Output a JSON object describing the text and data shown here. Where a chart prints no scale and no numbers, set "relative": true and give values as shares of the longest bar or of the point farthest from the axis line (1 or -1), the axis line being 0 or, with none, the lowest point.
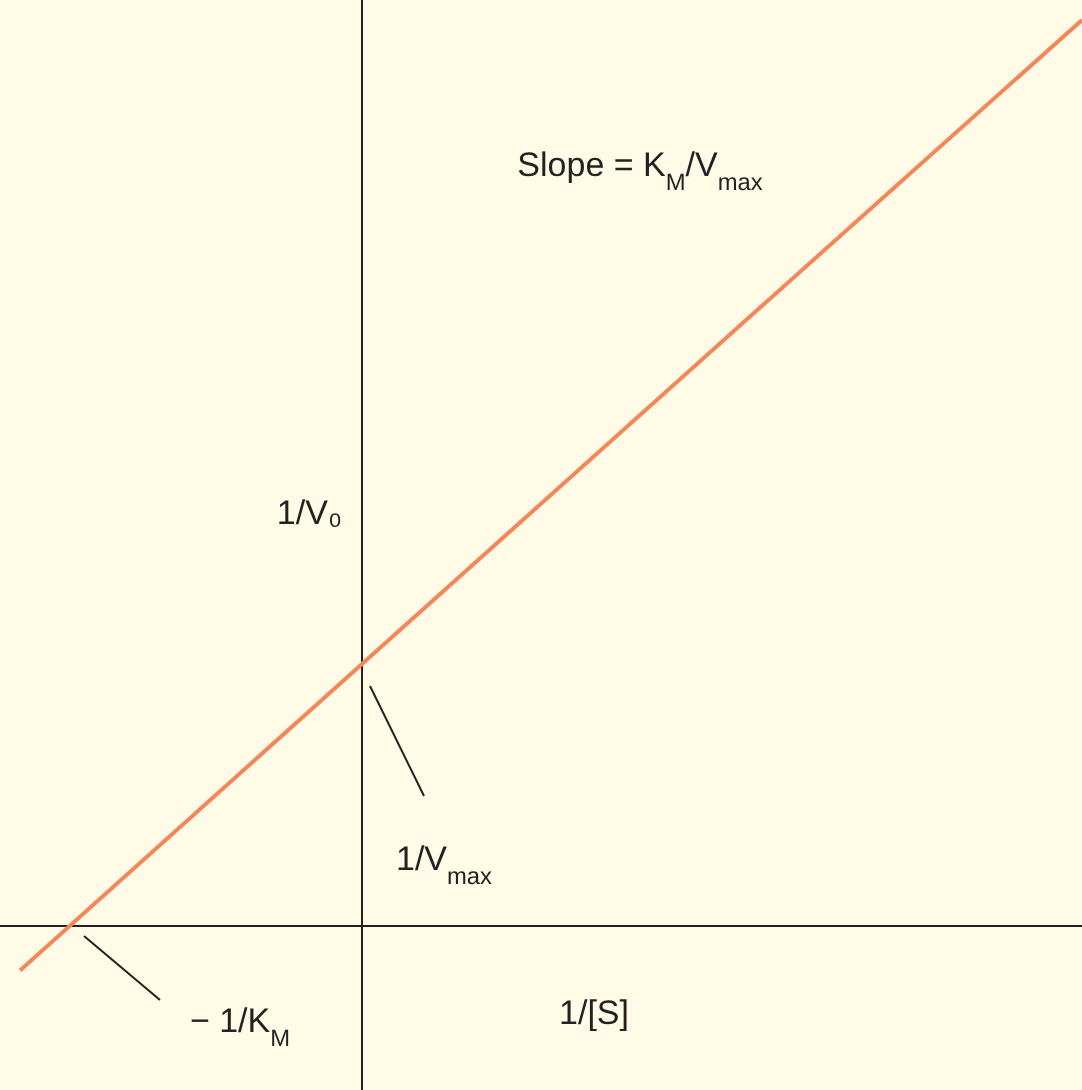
{
  "chart_data": {
    "type": "line",
    "relative": true,
    "xlabel": "1/[S]",
    "ylabel": "1/V₀",
    "categories": [
      null,
      null,
      null,
      null
    ],
    "series": [
      {
        "color": "#f4875a",
        "values": [
          -0.049,
          0.301,
          0.651,
          1
        ]
      }
    ],
    "annotations": [
      "Slope = K$_{M}$/V$_{max}$",
      "1/V$_{max}$",
      "− 1/K$_{M}$"
    ]
  }
}
